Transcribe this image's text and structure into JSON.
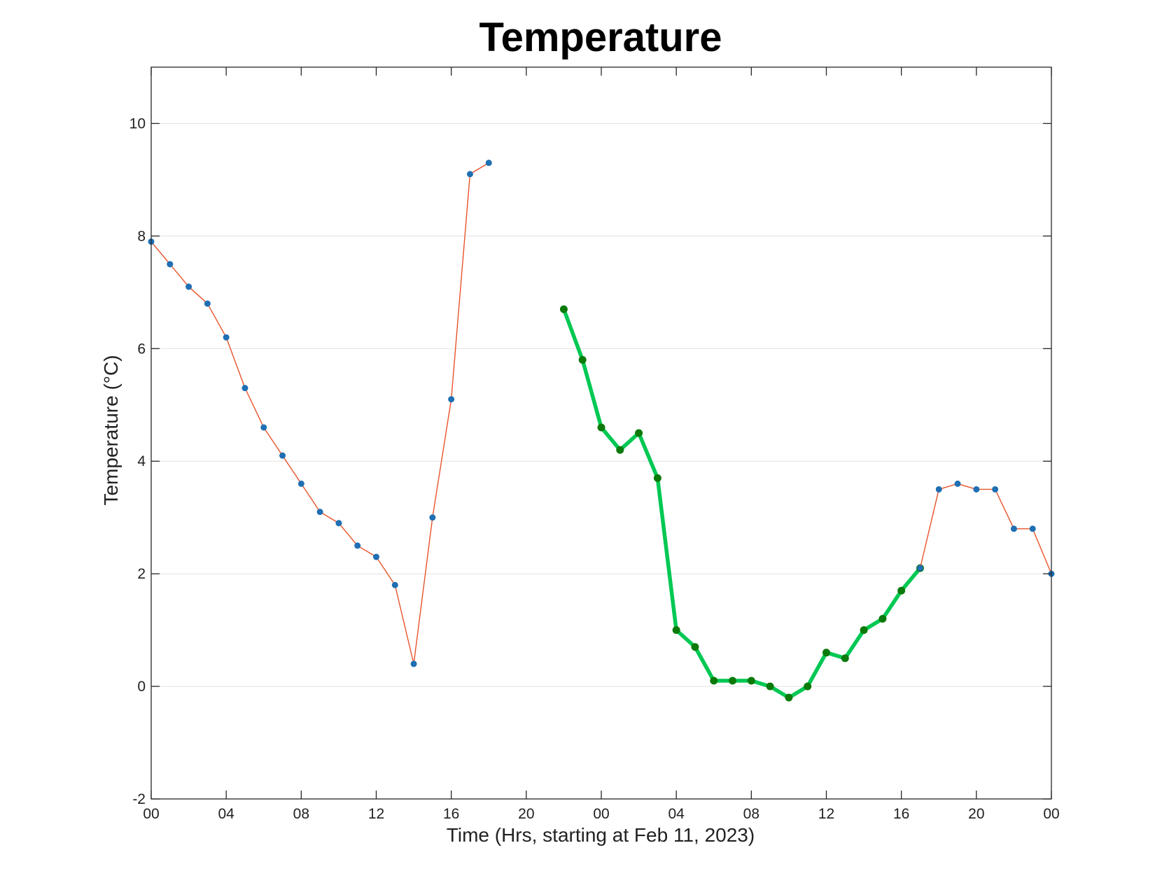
{
  "chart_data": {
    "type": "line",
    "title": "Temperature",
    "xlabel": "Time (Hrs, starting at Feb 11, 2023)",
    "ylabel": "Temperature (°C)",
    "x_unit": "hour",
    "xlim": [
      0,
      48
    ],
    "ylim": [
      -2,
      11
    ],
    "x_ticks": [
      0,
      4,
      8,
      12,
      16,
      20,
      24,
      28,
      32,
      36,
      40,
      44,
      48
    ],
    "x_tick_labels": [
      "00",
      "04",
      "08",
      "12",
      "16",
      "20",
      "00",
      "04",
      "08",
      "12",
      "16",
      "20",
      "00"
    ],
    "y_ticks": [
      -2,
      0,
      2,
      4,
      6,
      8,
      10
    ],
    "y_tick_labels": [
      "-2",
      "0",
      "2",
      "4",
      "6",
      "8",
      "10"
    ],
    "grid": "horizontal",
    "legend": "none",
    "series": [
      {
        "line_color": "#e8532a",
        "marker_color": "#1f6fb3",
        "line_width": "thin",
        "x": [
          0,
          1,
          2,
          3,
          4,
          5,
          6,
          7,
          8,
          9,
          10,
          11,
          12,
          13,
          14,
          15,
          16,
          17,
          18
        ],
        "y": [
          7.9,
          7.5,
          7.1,
          6.8,
          6.2,
          5.3,
          4.6,
          4.1,
          3.6,
          3.1,
          2.9,
          2.5,
          2.3,
          1.8,
          0.4,
          3.0,
          5.1,
          9.1,
          9.3
        ]
      },
      {
        "line_color": "#00c853",
        "marker_color": "#0b7a0b",
        "line_width": "thick",
        "x": [
          22,
          23,
          24,
          25,
          26,
          27,
          28,
          29,
          30,
          31,
          32,
          33,
          34,
          35,
          36,
          37,
          38,
          39,
          40,
          41
        ],
        "y": [
          6.7,
          5.8,
          4.6,
          4.2,
          4.5,
          3.7,
          1.0,
          0.7,
          0.1,
          0.1,
          0.1,
          0.0,
          -0.2,
          0.0,
          0.6,
          0.5,
          1.0,
          1.2,
          1.7,
          2.1
        ]
      },
      {
        "line_color": "#e8532a",
        "marker_color": "#1f6fb3",
        "line_width": "thin",
        "x": [
          41,
          42,
          43,
          44,
          45,
          46,
          47,
          48
        ],
        "y": [
          2.1,
          3.5,
          3.6,
          3.5,
          3.5,
          2.8,
          2.8,
          2.0
        ]
      }
    ]
  }
}
